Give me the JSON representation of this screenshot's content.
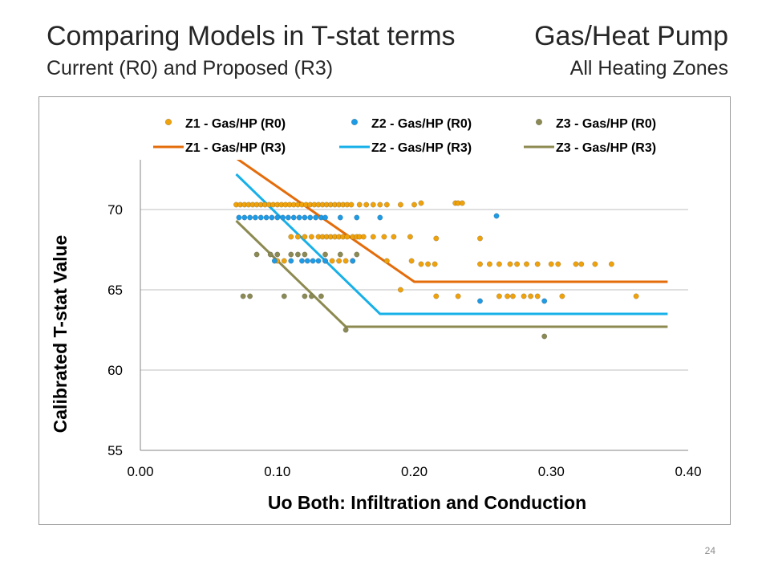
{
  "slide": {
    "title_left": "Comparing Models in T-stat terms",
    "subtitle_left": "Current (R0) and Proposed (R3)",
    "title_right": "Gas/Heat Pump",
    "subtitle_right": "All Heating Zones",
    "page_number": "24"
  },
  "colors": {
    "z1": "#F0A20A",
    "z1_line": "#E46C0A",
    "z2": "#1E9BE6",
    "z2_line": "#17B0E8",
    "z3": "#8B8A54",
    "z3_line": "#8C8A50",
    "gridline": "#bfbfbf"
  },
  "chart_data": {
    "type": "scatter",
    "xlabel": "Uo Both:  Infiltration and Conduction",
    "ylabel": "Calibrated T-stat Value",
    "xlim": [
      0.0,
      0.4
    ],
    "ylim": [
      55,
      73
    ],
    "xticks": [
      "0.00",
      "0.10",
      "0.20",
      "0.30",
      "0.40"
    ],
    "yticks": [
      "55",
      "60",
      "65",
      "70"
    ],
    "grid": "horizontal",
    "legend_position": "top",
    "series": [
      {
        "name": "Z1 - Gas/HP (R0)",
        "kind": "points",
        "color": "#F0A20A",
        "x": [
          0.07,
          0.073,
          0.076,
          0.079,
          0.082,
          0.085,
          0.088,
          0.091,
          0.094,
          0.097,
          0.1,
          0.103,
          0.106,
          0.109,
          0.112,
          0.115,
          0.118,
          0.121,
          0.124,
          0.127,
          0.13,
          0.133,
          0.136,
          0.139,
          0.142,
          0.145,
          0.148,
          0.151,
          0.154,
          0.16,
          0.165,
          0.17,
          0.175,
          0.18,
          0.19,
          0.2,
          0.205,
          0.23,
          0.232,
          0.235,
          0.11,
          0.115,
          0.12,
          0.125,
          0.13,
          0.133,
          0.136,
          0.139,
          0.142,
          0.145,
          0.148,
          0.151,
          0.155,
          0.158,
          0.16,
          0.163,
          0.17,
          0.178,
          0.185,
          0.197,
          0.216,
          0.248,
          0.1,
          0.105,
          0.135,
          0.14,
          0.145,
          0.15,
          0.155,
          0.18,
          0.198,
          0.205,
          0.21,
          0.215,
          0.248,
          0.255,
          0.262,
          0.27,
          0.275,
          0.282,
          0.29,
          0.3,
          0.305,
          0.318,
          0.322,
          0.332,
          0.344,
          0.19,
          0.216,
          0.232,
          0.262,
          0.268,
          0.272,
          0.28,
          0.285,
          0.29,
          0.308,
          0.362
        ],
        "y": [
          70.3,
          70.3,
          70.3,
          70.3,
          70.3,
          70.3,
          70.3,
          70.3,
          70.3,
          70.3,
          70.3,
          70.3,
          70.3,
          70.3,
          70.3,
          70.3,
          70.3,
          70.3,
          70.3,
          70.3,
          70.3,
          70.3,
          70.3,
          70.3,
          70.3,
          70.3,
          70.3,
          70.3,
          70.3,
          70.3,
          70.3,
          70.3,
          70.3,
          70.3,
          70.3,
          70.3,
          70.4,
          70.4,
          70.4,
          70.4,
          68.3,
          68.3,
          68.3,
          68.3,
          68.3,
          68.3,
          68.3,
          68.3,
          68.3,
          68.3,
          68.3,
          68.3,
          68.3,
          68.3,
          68.3,
          68.3,
          68.3,
          68.3,
          68.3,
          68.3,
          68.2,
          68.2,
          66.8,
          66.8,
          66.8,
          66.8,
          66.8,
          66.8,
          66.8,
          66.8,
          66.8,
          66.6,
          66.6,
          66.6,
          66.6,
          66.6,
          66.6,
          66.6,
          66.6,
          66.6,
          66.6,
          66.6,
          66.6,
          66.6,
          66.6,
          66.6,
          66.6,
          65.0,
          64.6,
          64.6,
          64.6,
          64.6,
          64.6,
          64.6,
          64.6,
          64.6,
          64.6,
          64.6
        ]
      },
      {
        "name": "Z2 - Gas/HP (R0)",
        "kind": "points",
        "color": "#1E9BE6",
        "x": [
          0.072,
          0.076,
          0.08,
          0.084,
          0.088,
          0.092,
          0.096,
          0.1,
          0.104,
          0.108,
          0.112,
          0.116,
          0.12,
          0.124,
          0.128,
          0.132,
          0.135,
          0.146,
          0.158,
          0.175,
          0.26,
          0.098,
          0.11,
          0.118,
          0.122,
          0.126,
          0.13,
          0.135,
          0.155,
          0.248,
          0.295
        ],
        "y": [
          69.5,
          69.5,
          69.5,
          69.5,
          69.5,
          69.5,
          69.5,
          69.5,
          69.5,
          69.5,
          69.5,
          69.5,
          69.5,
          69.5,
          69.5,
          69.5,
          69.5,
          69.5,
          69.5,
          69.5,
          69.6,
          66.8,
          66.8,
          66.8,
          66.8,
          66.8,
          66.8,
          66.8,
          66.8,
          64.3,
          64.3
        ]
      },
      {
        "name": "Z3 - Gas/HP (R0)",
        "kind": "points",
        "color": "#8B8A54",
        "x": [
          0.085,
          0.095,
          0.1,
          0.11,
          0.115,
          0.12,
          0.135,
          0.146,
          0.158,
          0.075,
          0.08,
          0.105,
          0.12,
          0.125,
          0.132,
          0.15,
          0.295
        ],
        "y": [
          67.2,
          67.2,
          67.2,
          67.2,
          67.2,
          67.2,
          67.2,
          67.2,
          67.2,
          64.6,
          64.6,
          64.6,
          64.6,
          64.6,
          64.6,
          62.5,
          62.1
        ]
      },
      {
        "name": "Z1 - Gas/HP (R3)",
        "kind": "line",
        "color": "#E46C0A",
        "x": [
          0.07,
          0.2,
          0.385
        ],
        "y": [
          73.2,
          65.5,
          65.5
        ]
      },
      {
        "name": "Z2 - Gas/HP (R3)",
        "kind": "line",
        "color": "#17B0E8",
        "x": [
          0.07,
          0.175,
          0.385
        ],
        "y": [
          72.2,
          63.5,
          63.5
        ]
      },
      {
        "name": "Z3 - Gas/HP (R3)",
        "kind": "line",
        "color": "#8C8A50",
        "x": [
          0.07,
          0.15,
          0.385
        ],
        "y": [
          69.3,
          62.7,
          62.7
        ]
      }
    ]
  }
}
